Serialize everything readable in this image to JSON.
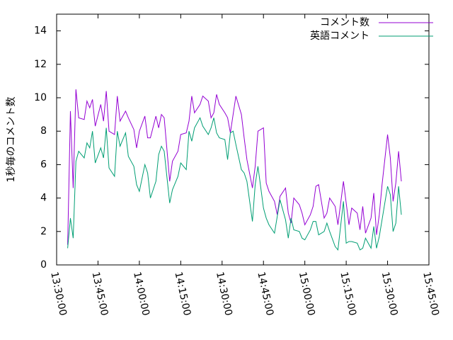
{
  "chart_data": {
    "type": "line",
    "ylabel": "1秒毎のコメント数",
    "xlim": [
      "13:30:00",
      "15:45:00"
    ],
    "xticks": [
      "13:30:00",
      "13:45:00",
      "14:00:00",
      "14:15:00",
      "14:30:00",
      "14:45:00",
      "15:00:00",
      "15:15:00",
      "15:30:00",
      "15:45:00"
    ],
    "ylim": [
      0,
      15
    ],
    "yticks": [
      0,
      2,
      4,
      6,
      8,
      10,
      12,
      14
    ],
    "legend": "top-right",
    "x": [
      "13:34:00",
      "13:35:00",
      "13:36:00",
      "13:37:00",
      "13:38:00",
      "13:40:00",
      "13:41:00",
      "13:42:00",
      "13:43:00",
      "13:44:00",
      "13:46:00",
      "13:47:00",
      "13:48:00",
      "13:49:00",
      "13:51:00",
      "13:52:00",
      "13:53:00",
      "13:55:00",
      "13:56:00",
      "13:58:00",
      "13:59:00",
      "14:00:00",
      "14:02:00",
      "14:03:00",
      "14:04:00",
      "14:06:00",
      "14:07:00",
      "14:08:00",
      "14:09:00",
      "14:11:00",
      "14:12:00",
      "14:14:00",
      "14:15:00",
      "14:17:00",
      "14:18:00",
      "14:19:00",
      "14:20:00",
      "14:22:00",
      "14:23:00",
      "14:25:00",
      "14:26:00",
      "14:27:00",
      "14:28:00",
      "14:29:00",
      "14:31:00",
      "14:32:00",
      "14:33:00",
      "14:34:00",
      "14:35:00",
      "14:37:00",
      "14:38:00",
      "14:39:00",
      "14:41:00",
      "14:42:00",
      "14:43:00",
      "14:45:00",
      "14:46:00",
      "14:47:00",
      "14:49:00",
      "14:50:00",
      "14:51:00",
      "14:53:00",
      "14:54:00",
      "14:55:00",
      "14:56:00",
      "14:58:00",
      "14:59:00",
      "15:00:00",
      "15:02:00",
      "15:03:00",
      "15:04:00",
      "15:05:00",
      "15:07:00",
      "15:08:00",
      "15:09:00",
      "15:11:00",
      "15:12:00",
      "15:14:00",
      "15:15:00",
      "15:16:00",
      "15:17:00",
      "15:19:00",
      "15:20:00",
      "15:21:00",
      "15:22:00",
      "15:24:00",
      "15:25:00",
      "15:26:00",
      "15:27:00",
      "15:28:00",
      "15:30:00",
      "15:31:00",
      "15:32:00",
      "15:33:00",
      "15:34:00",
      "15:35:00"
    ],
    "series": [
      {
        "name": "コメント数",
        "color": "#9400d3",
        "values": [
          1.2,
          9.2,
          4.6,
          10.5,
          8.8,
          8.7,
          9.8,
          9.4,
          9.9,
          8.3,
          9.6,
          8.6,
          10.4,
          8.0,
          7.8,
          10.1,
          8.6,
          9.2,
          8.8,
          8.1,
          7.0,
          8.0,
          8.9,
          7.6,
          7.6,
          8.9,
          8.2,
          9.0,
          8.8,
          5.0,
          6.2,
          6.8,
          7.8,
          7.9,
          8.6,
          10.1,
          9.1,
          9.6,
          10.1,
          9.8,
          8.8,
          9.1,
          10.2,
          9.6,
          9.1,
          8.8,
          7.9,
          9.0,
          10.1,
          9.0,
          7.6,
          6.3,
          4.6,
          5.9,
          8.0,
          8.2,
          4.9,
          4.4,
          3.8,
          3.0,
          4.1,
          4.6,
          3.1,
          2.5,
          4.0,
          3.6,
          3.1,
          2.4,
          3.0,
          3.5,
          4.7,
          4.8,
          2.8,
          3.1,
          4.0,
          3.5,
          2.4,
          5.0,
          3.7,
          2.4,
          3.4,
          3.1,
          2.1,
          3.5,
          1.9,
          2.8,
          4.3,
          1.8,
          3.0,
          4.8,
          7.8,
          6.4,
          3.8,
          4.9,
          6.8,
          5.0
        ]
      },
      {
        "name": "英語コメント",
        "color": "#009e73",
        "values": [
          1.0,
          2.8,
          1.6,
          6.2,
          6.8,
          6.4,
          7.3,
          7.0,
          8.0,
          6.1,
          7.0,
          6.4,
          8.2,
          5.8,
          5.3,
          8.0,
          7.1,
          7.9,
          6.5,
          5.9,
          4.8,
          4.4,
          6.0,
          5.5,
          4.0,
          5.0,
          6.6,
          7.1,
          6.8,
          3.7,
          4.5,
          5.3,
          6.1,
          5.7,
          8.0,
          7.4,
          8.2,
          8.8,
          8.3,
          7.8,
          8.2,
          8.8,
          7.9,
          7.6,
          7.5,
          6.3,
          7.9,
          8.0,
          7.2,
          5.7,
          5.5,
          5.0,
          2.6,
          4.8,
          5.9,
          3.4,
          2.8,
          2.4,
          1.9,
          2.9,
          3.9,
          2.7,
          1.6,
          2.8,
          2.1,
          2.0,
          1.6,
          1.5,
          2.1,
          2.6,
          2.6,
          1.8,
          2.0,
          2.5,
          2.0,
          1.1,
          0.9,
          3.8,
          1.3,
          1.4,
          1.4,
          1.3,
          0.9,
          1.0,
          1.6,
          1.0,
          2.3,
          1.0,
          1.7,
          2.7,
          4.7,
          4.2,
          2.0,
          2.5,
          4.7,
          3.0
        ]
      }
    ]
  }
}
